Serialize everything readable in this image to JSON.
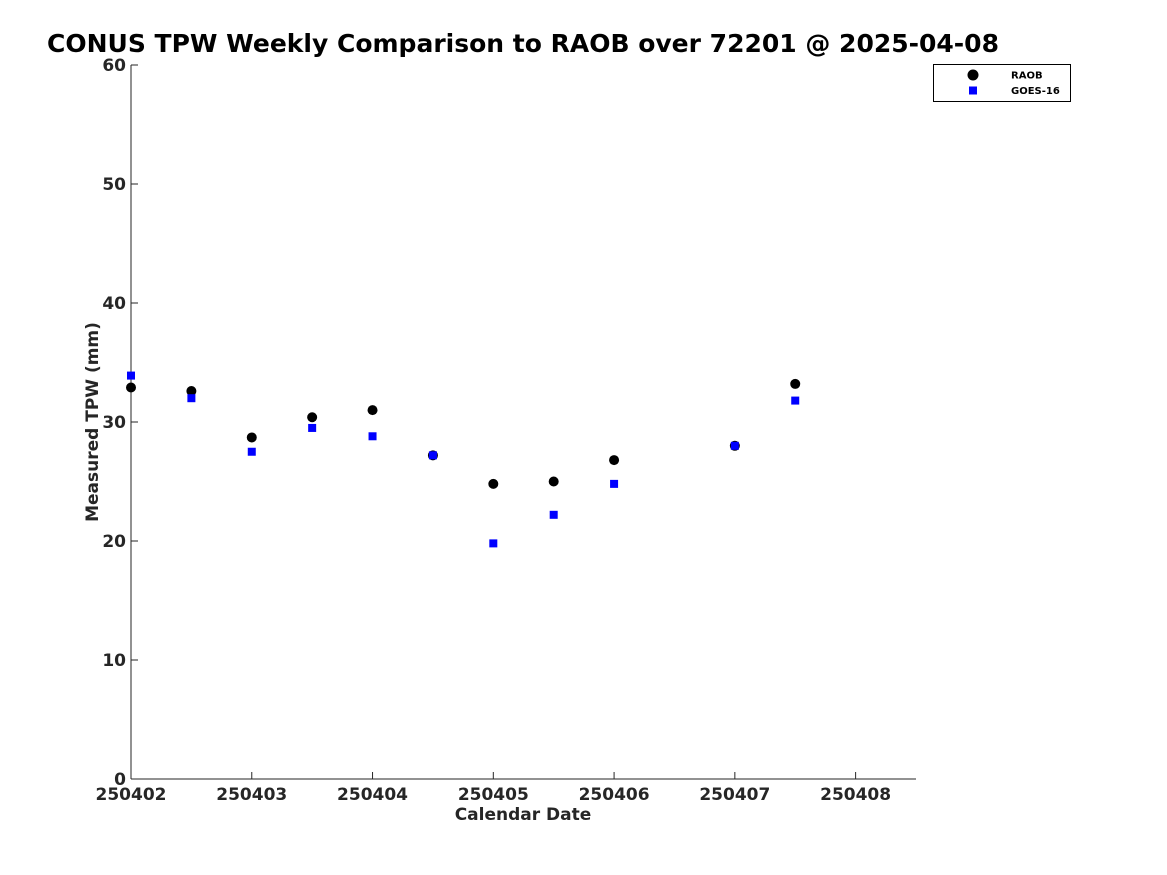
{
  "chart_data": {
    "type": "scatter",
    "title": "CONUS TPW Weekly Comparison to RAOB over 72201 @ 2025-04-08",
    "xlabel": "Calendar Date",
    "ylabel": "Measured TPW (mm)",
    "xlim": [
      250402,
      250408.5
    ],
    "ylim": [
      0,
      60
    ],
    "x_ticks": [
      250402,
      250403,
      250404,
      250405,
      250406,
      250407,
      250408
    ],
    "x_tick_labels": [
      "250402",
      "250403",
      "250404",
      "250405",
      "250406",
      "250407",
      "250408"
    ],
    "y_ticks": [
      0,
      10,
      20,
      30,
      40,
      50,
      60
    ],
    "y_tick_labels": [
      "0",
      "10",
      "20",
      "30",
      "40",
      "50",
      "60"
    ],
    "grid": false,
    "legend_position": "top-right",
    "series": [
      {
        "name": "RAOB",
        "marker": "circle",
        "color": "#000000",
        "x": [
          250402,
          250402.5,
          250403,
          250403.5,
          250404,
          250404.5,
          250405,
          250405.5,
          250406,
          250407,
          250407.5
        ],
        "values": [
          32.9,
          32.6,
          28.7,
          30.4,
          31.0,
          27.2,
          24.8,
          25.0,
          26.8,
          28.0,
          33.2
        ]
      },
      {
        "name": "GOES-16",
        "marker": "square",
        "color": "#0000ff",
        "x": [
          250402,
          250402.5,
          250403,
          250403.5,
          250404,
          250404.5,
          250405,
          250405.5,
          250406,
          250407,
          250407.5
        ],
        "values": [
          33.9,
          32.0,
          27.5,
          29.5,
          28.8,
          27.2,
          19.8,
          22.2,
          24.8,
          28.0,
          31.8
        ]
      }
    ]
  }
}
